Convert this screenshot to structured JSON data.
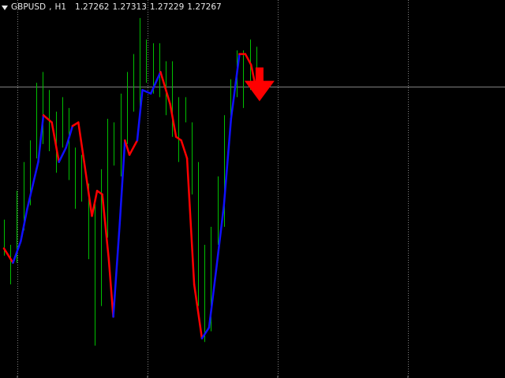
{
  "chart": {
    "symbol": "GBPUSD",
    "timeframe": "H1",
    "quotes": [
      "1.27262",
      "1.27313",
      "1.27229",
      "1.27267"
    ]
  },
  "colors": {
    "background": "#000000",
    "bars": "#00c000",
    "grid": "#808080",
    "trend_up": "#1010ff",
    "trend_down": "#ff0000",
    "signal_arrow": "#ff0000"
  },
  "signal": {
    "direction": "down",
    "icon": "down-arrow-icon"
  },
  "chart_data": {
    "type": "line",
    "title": "",
    "xlabel": "",
    "ylabel": "",
    "ylim": [
      1.2656,
      1.2761
    ],
    "bars": [
      {
        "h": 1.27,
        "l": 1.269
      },
      {
        "h": 1.2693,
        "l": 1.2682
      },
      {
        "h": 1.2708,
        "l": 1.2688
      },
      {
        "h": 1.2716,
        "l": 1.2697
      },
      {
        "h": 1.2722,
        "l": 1.2704
      },
      {
        "h": 1.2738,
        "l": 1.2717
      },
      {
        "h": 1.2741,
        "l": 1.2721
      },
      {
        "h": 1.2736,
        "l": 1.2719
      },
      {
        "h": 1.273,
        "l": 1.2713
      },
      {
        "h": 1.2734,
        "l": 1.272
      },
      {
        "h": 1.2731,
        "l": 1.2711
      },
      {
        "h": 1.272,
        "l": 1.2703
      },
      {
        "h": 1.2718,
        "l": 1.2705
      },
      {
        "h": 1.271,
        "l": 1.2689
      },
      {
        "h": 1.2706,
        "l": 1.2665
      },
      {
        "h": 1.2714,
        "l": 1.2676
      },
      {
        "h": 1.2728,
        "l": 1.2695
      },
      {
        "h": 1.2727,
        "l": 1.2715
      },
      {
        "h": 1.2735,
        "l": 1.2712
      },
      {
        "h": 1.2741,
        "l": 1.2721
      },
      {
        "h": 1.2746,
        "l": 1.273
      },
      {
        "h": 1.2756,
        "l": 1.273
      },
      {
        "h": 1.275,
        "l": 1.2738
      },
      {
        "h": 1.2749,
        "l": 1.2735
      },
      {
        "h": 1.2749,
        "l": 1.2734
      },
      {
        "h": 1.2744,
        "l": 1.2729
      },
      {
        "h": 1.2744,
        "l": 1.2723
      },
      {
        "h": 1.2734,
        "l": 1.2716
      },
      {
        "h": 1.2734,
        "l": 1.2727
      },
      {
        "h": 1.2727,
        "l": 1.2707
      },
      {
        "h": 1.2716,
        "l": 1.2676
      },
      {
        "h": 1.2693,
        "l": 1.2666
      },
      {
        "h": 1.2698,
        "l": 1.2669
      },
      {
        "h": 1.2712,
        "l": 1.2693
      },
      {
        "h": 1.2729,
        "l": 1.2698
      },
      {
        "h": 1.2739,
        "l": 1.2725
      },
      {
        "h": 1.2747,
        "l": 1.2734
      },
      {
        "h": 1.2747,
        "l": 1.2731
      },
      {
        "h": 1.275,
        "l": 1.2736
      },
      {
        "h": 1.2748,
        "l": 1.2739
      }
    ],
    "series": [
      {
        "x": [
          0,
          1.4,
          2.6,
          3.6,
          5.3,
          6.1,
          7.4,
          8.5,
          9.6,
          10.6,
          11.5,
          12.4,
          13.6,
          14.4,
          15.2,
          16.2,
          16.9,
          17.9,
          18.7,
          19.4,
          20.6,
          21.4,
          22.7,
          24.2,
          25.7,
          26.6,
          27.4,
          28.3,
          29.4,
          30.6,
          31.7,
          32.8,
          34.0,
          35.1,
          36.4,
          37.3,
          38.2,
          39.0
        ],
        "y": [
          1.2692,
          1.2688,
          1.2694,
          1.2703,
          1.2716,
          1.2729,
          1.2727,
          1.2716,
          1.272,
          1.2726,
          1.2727,
          1.2716,
          1.2701,
          1.2708,
          1.2707,
          1.2689,
          1.2673,
          1.2699,
          1.2722,
          1.2718,
          1.2722,
          1.2736,
          1.2735,
          1.2741,
          1.2732,
          1.2723,
          1.2722,
          1.2717,
          1.2682,
          1.2667,
          1.267,
          1.2686,
          1.2704,
          1.2728,
          1.2746,
          1.2746,
          1.2743,
          1.2736
        ],
        "dir": [
          "d",
          "u",
          "u",
          "u",
          "u",
          "d",
          "d",
          "u",
          "u",
          "d",
          "d",
          "d",
          "d",
          "d",
          "d",
          "d",
          "u",
          "u",
          "d",
          "d",
          "u",
          "u",
          "u",
          "d",
          "d",
          "d",
          "d",
          "d",
          "d",
          "u",
          "u",
          "u",
          "u",
          "u",
          "d",
          "d",
          "d"
        ]
      }
    ],
    "grid": true,
    "grid_levels": [
      1.2737
    ],
    "signal_arrow": {
      "x": 39.5,
      "y": 1.2739,
      "direction": "down"
    }
  }
}
